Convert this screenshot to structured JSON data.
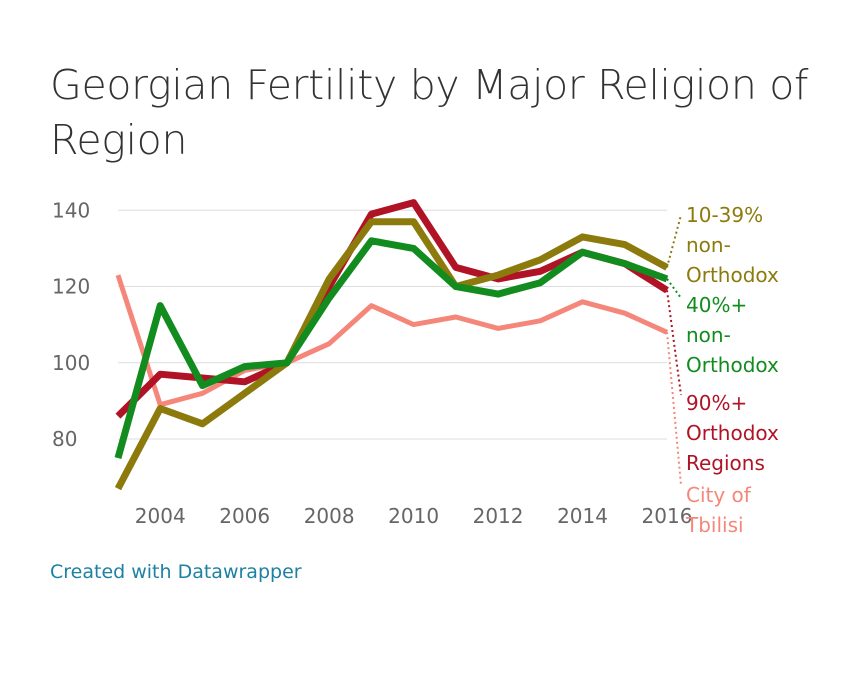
{
  "title": "Georgian Fertility by Major Religion of Region",
  "footer": {
    "credit": "Created with Datawrapper"
  },
  "chart_data": {
    "type": "line",
    "title": "Georgian Fertility by Major Religion of Region",
    "xlabel": "",
    "ylabel": "",
    "x": [
      2003,
      2004,
      2005,
      2006,
      2007,
      2008,
      2009,
      2010,
      2011,
      2012,
      2013,
      2014,
      2015,
      2016
    ],
    "xlim": [
      2003,
      2016
    ],
    "ylim": [
      64,
      144
    ],
    "x_ticks": [
      "2004",
      "2006",
      "2008",
      "2010",
      "2012",
      "2014",
      "2016"
    ],
    "y_ticks": [
      "80",
      "100",
      "120",
      "140"
    ],
    "grid": "horizontal",
    "legend": "direct labels at right",
    "series": [
      {
        "name": "City of Tbilisi",
        "label_lines": [
          "City of",
          "Tbilisi"
        ],
        "color": "#f5877a",
        "width": 5,
        "values": [
          123,
          89,
          92,
          98,
          100,
          105,
          115,
          110,
          112,
          109,
          111,
          116,
          113,
          108
        ]
      },
      {
        "name": "90%+ Orthodox Regions",
        "label_lines": [
          "90%+",
          "Orthodox",
          "Regions"
        ],
        "color": "#b01326",
        "width": 7,
        "values": [
          86,
          97,
          96,
          95,
          100,
          120,
          139,
          142,
          125,
          122,
          124,
          129,
          126,
          119
        ]
      },
      {
        "name": "10-39% non-Orthodox",
        "label_lines": [
          "10-39%",
          "non-",
          "Orthodox"
        ],
        "color": "#8c7b0c",
        "width": 7,
        "values": [
          67,
          88,
          84,
          92,
          100,
          122,
          137,
          137,
          120,
          123,
          127,
          133,
          131,
          125
        ]
      },
      {
        "name": "40%+ non-Orthodox",
        "label_lines": [
          "40%+",
          "non-",
          "Orthodox"
        ],
        "color": "#128c1e",
        "width": 7,
        "values": [
          75,
          115,
          94,
          99,
          100,
          117,
          132,
          130,
          120,
          118,
          121,
          129,
          126,
          122
        ]
      }
    ]
  }
}
